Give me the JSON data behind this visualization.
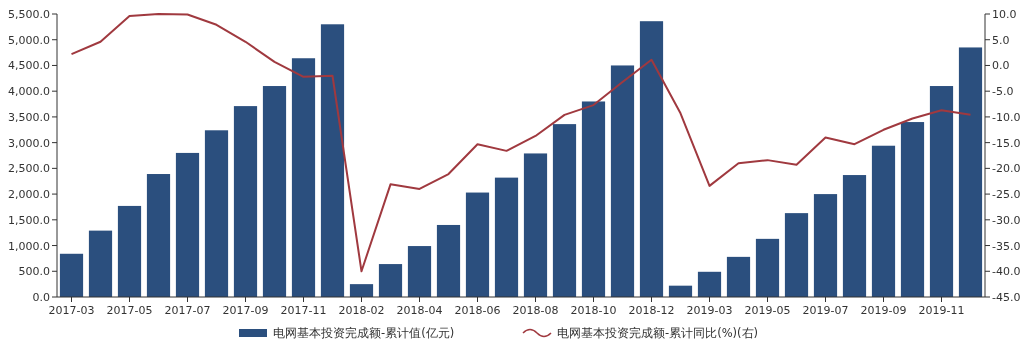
{
  "chart_data": {
    "type": "bar",
    "categories": [
      "2017-03",
      null,
      "2017-05",
      null,
      "2017-07",
      null,
      "2017-09",
      null,
      "2017-11",
      null,
      "2018-02",
      null,
      "2018-04",
      null,
      "2018-06",
      null,
      "2018-08",
      null,
      "2018-10",
      null,
      "2018-12",
      null,
      "2019-03",
      null,
      "2019-05",
      null,
      "2019-07",
      null,
      "2019-09",
      null,
      "2019-11",
      null
    ],
    "series": [
      {
        "name": "电网基本投资完成额-累计值(亿元)",
        "color": "#2b4f7e",
        "values": [
          840,
          1290,
          1770,
          2390,
          2800,
          3240,
          3710,
          4100,
          4640,
          5300,
          250,
          640,
          990,
          1400,
          2030,
          2320,
          2790,
          3360,
          3800,
          4500,
          5360,
          220,
          490,
          780,
          1130,
          1630,
          2000,
          2370,
          2940,
          3400,
          4100,
          4850
        ]
      },
      {
        "name": "电网基本投资完成额-累计同比(%)(右)",
        "type": "line",
        "axis": "y2",
        "color": "#a0393f",
        "values": [
          2.2,
          4.6,
          9.6,
          10.0,
          9.9,
          7.9,
          4.6,
          0.7,
          -2.2,
          -2.0,
          -40.0,
          -23.1,
          -24.0,
          -21.1,
          -15.3,
          -16.6,
          -13.7,
          -9.6,
          -7.7,
          -3.2,
          1.1,
          -9.3,
          -23.4,
          -19.0,
          -18.4,
          -19.3,
          -14.0,
          -15.3,
          -12.5,
          -10.3,
          -8.7,
          -9.6
        ]
      }
    ],
    "ylim": [
      0,
      5500
    ],
    "yticks": [
      {
        "value": 0,
        "label": "0.0"
      },
      {
        "value": 500,
        "label": "500.0"
      },
      {
        "value": 1000,
        "label": "1,000.0"
      },
      {
        "value": 1500,
        "label": "1,500.0"
      },
      {
        "value": 2000,
        "label": "2,000.0"
      },
      {
        "value": 2500,
        "label": "2,500.0"
      },
      {
        "value": 3000,
        "label": "3,000.0"
      },
      {
        "value": 3500,
        "label": "3,500.0"
      },
      {
        "value": 4000,
        "label": "4,000.0"
      },
      {
        "value": 4500,
        "label": "4,500.0"
      },
      {
        "value": 5000,
        "label": "5,000.0"
      },
      {
        "value": 5500,
        "label": "5,500.0"
      }
    ],
    "y2lim": [
      -45,
      10
    ],
    "y2ticks": [
      {
        "value": -45,
        "label": "-45.0"
      },
      {
        "value": -40,
        "label": "-40.0"
      },
      {
        "value": -35,
        "label": "-35.0"
      },
      {
        "value": -30,
        "label": "-30.0"
      },
      {
        "value": -25,
        "label": "-25.0"
      },
      {
        "value": -20,
        "label": "-20.0"
      },
      {
        "value": -15,
        "label": "-15.0"
      },
      {
        "value": -10,
        "label": "-10.0"
      },
      {
        "value": -5,
        "label": "-5.0"
      },
      {
        "value": 0,
        "label": "0.0"
      },
      {
        "value": 5,
        "label": "5.0"
      },
      {
        "value": 10,
        "label": "10.0"
      }
    ],
    "legend": "bottom",
    "grid": false
  }
}
